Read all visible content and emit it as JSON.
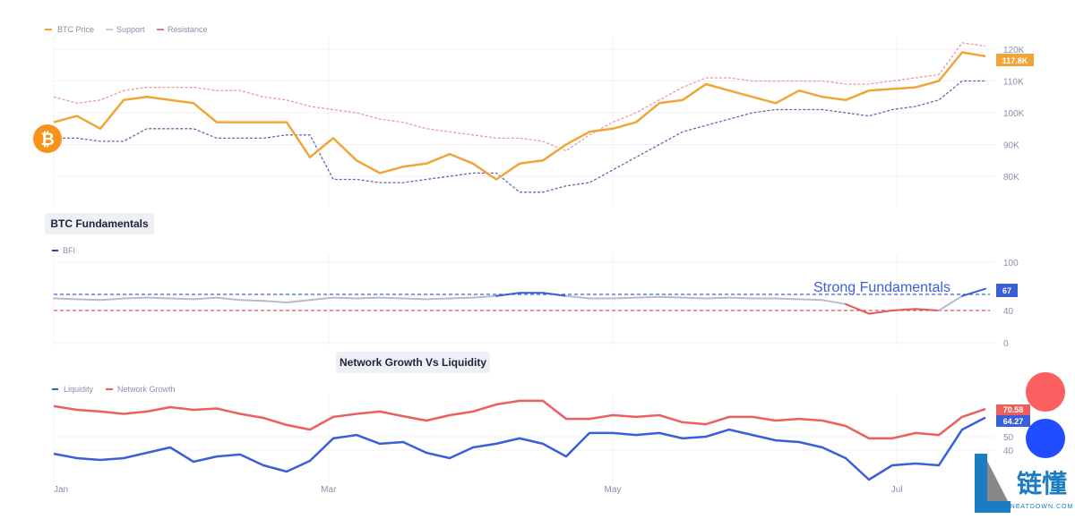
{
  "dates": [
    "01-01",
    "01-06",
    "01-11",
    "01-16",
    "01-21",
    "01-26",
    "01-31",
    "02-05",
    "02-10",
    "02-15",
    "02-20",
    "02-25",
    "03-02",
    "03-07",
    "03-12",
    "03-17",
    "03-22",
    "03-27",
    "04-01",
    "04-06",
    "04-11",
    "04-16",
    "04-21",
    "04-26",
    "05-01",
    "05-06",
    "05-11",
    "05-16",
    "05-21",
    "05-26",
    "05-31",
    "06-05",
    "06-10",
    "06-15",
    "06-20",
    "06-25",
    "06-30",
    "07-05",
    "07-10",
    "07-15",
    "07-20"
  ],
  "x_ticks": [
    {
      "date": "01-01",
      "label": "Jan"
    },
    {
      "date": "03-01",
      "label": "Mar"
    },
    {
      "date": "05-01",
      "label": "May"
    },
    {
      "date": "07-01",
      "label": "Jul"
    }
  ],
  "chart_data": [
    {
      "type": "line",
      "title": "",
      "y_ticks": [
        {
          "v": 120,
          "label": "120K"
        },
        {
          "v": 110,
          "label": "110K"
        },
        {
          "v": 100,
          "label": "100K"
        },
        {
          "v": 90,
          "label": "90K"
        },
        {
          "v": 80,
          "label": "80K"
        }
      ],
      "ylim": [
        75,
        122
      ],
      "unit": "K",
      "last_value_label": "117.8K",
      "series": [
        {
          "name": "BTC Price",
          "color": "#f0a637",
          "style": "solid",
          "values": [
            97,
            99,
            95,
            104,
            105,
            104,
            103,
            97,
            97,
            97,
            97,
            86,
            92,
            85,
            81,
            83,
            84,
            87,
            84,
            79,
            84,
            85,
            90,
            94,
            95,
            97,
            103,
            104,
            109,
            107,
            105,
            103,
            107,
            105,
            104,
            107,
            107.5,
            108,
            110,
            119,
            117.8
          ]
        },
        {
          "name": "Support",
          "color": "#6a64b0",
          "style": "dotted",
          "values": [
            92,
            92,
            91,
            91,
            95,
            95,
            95,
            92,
            92,
            92,
            93,
            93,
            79,
            79,
            78,
            78,
            79,
            80,
            81,
            81,
            75,
            75,
            77,
            78,
            82,
            86,
            90,
            94,
            96,
            98,
            100,
            101,
            101,
            101,
            100,
            99,
            101,
            102,
            104,
            110,
            110
          ]
        },
        {
          "name": "Resistance",
          "color": "#e89aa0",
          "style": "dotted",
          "values": [
            105,
            103,
            104,
            107,
            108,
            108,
            108,
            107,
            107,
            105,
            104,
            102,
            101,
            100,
            98,
            97,
            95,
            94,
            93,
            92,
            92,
            91,
            88,
            93,
            97,
            100,
            104,
            108,
            111,
            111,
            110,
            110,
            110,
            110,
            109,
            109,
            110,
            111,
            112,
            122,
            121
          ]
        }
      ]
    },
    {
      "type": "line",
      "title": "BTC Fundamentals",
      "y_ticks": [
        {
          "v": 100,
          "label": "100"
        },
        {
          "v": 40,
          "label": "40"
        },
        {
          "v": 0,
          "label": "0"
        }
      ],
      "ylim": [
        0,
        100
      ],
      "annotation": "Strong Fundamentals",
      "thresholds": [
        {
          "v": 60,
          "color": "#3b5fd9"
        },
        {
          "v": 40,
          "color": "#e05a5a"
        }
      ],
      "last_value_label": "67",
      "colors": {
        "neutral": "#b9bcc8",
        "strong": "#3b5fd9",
        "weak": "#e05a5a"
      },
      "series": [
        {
          "name": "BFI",
          "color": "#3b3f9c",
          "values": [
            55,
            54,
            53,
            55,
            56,
            55,
            54,
            56,
            53,
            52,
            50,
            53,
            56,
            55,
            56,
            55,
            54,
            55,
            56,
            58,
            62,
            62,
            58,
            55,
            55,
            56,
            57,
            56,
            55,
            56,
            55,
            55,
            54,
            53,
            48,
            36,
            40,
            42,
            40,
            58,
            67
          ]
        }
      ]
    },
    {
      "type": "line",
      "title": "Network Growth Vs Liquidity",
      "y_ticks": [
        {
          "v": 50,
          "label": "50"
        },
        {
          "v": 40,
          "label": "40"
        }
      ],
      "series": [
        {
          "name": "Liquidity",
          "color": "#3b5fd9",
          "last_label": "64.27",
          "values": [
            37.3,
            34,
            32.7,
            34,
            38,
            42,
            31.3,
            35.3,
            36.7,
            28.7,
            24,
            32,
            48.7,
            51.3,
            44.7,
            46,
            38,
            34,
            42,
            44.7,
            48.7,
            44.7,
            35.3,
            52.7,
            52.7,
            51.3,
            52.7,
            48.7,
            50,
            55.3,
            51.3,
            47.3,
            46,
            42,
            34,
            18,
            28.7,
            30,
            28.7,
            55.3,
            64.27
          ]
        },
        {
          "name": "Network Growth",
          "color": "#ec5f5f",
          "last_label": "70.58",
          "values": [
            72.7,
            70,
            68.7,
            67,
            68.7,
            72,
            70,
            71,
            67,
            64,
            58.7,
            55.3,
            64.7,
            67,
            68.7,
            65.3,
            62,
            66,
            68.7,
            74,
            76.7,
            76.7,
            63.3,
            63.3,
            66,
            64.7,
            66,
            60.7,
            59.3,
            64.7,
            64.7,
            62,
            63.3,
            62,
            58,
            48.7,
            48.7,
            52.7,
            51.3,
            64.7,
            70.58
          ]
        }
      ]
    }
  ],
  "watermark": {
    "text": "链懂",
    "sub": "NEATDOWN.COM"
  },
  "icons": {
    "btc": "bitcoin-icon"
  }
}
